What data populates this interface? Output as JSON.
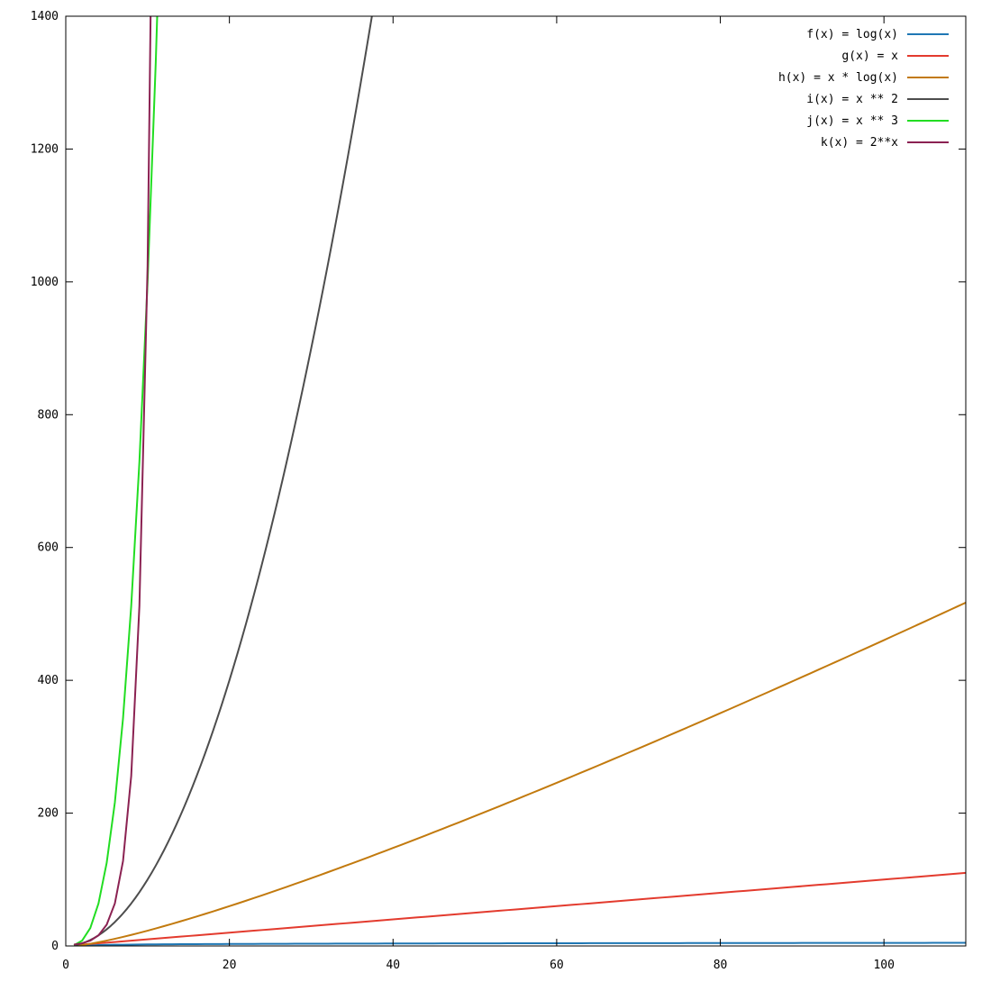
{
  "chart_data": {
    "type": "line",
    "title": "",
    "xlabel": "",
    "ylabel": "",
    "xlim": [
      0,
      110
    ],
    "ylim": [
      0,
      1400
    ],
    "x_ticks": [
      0,
      20,
      40,
      60,
      80,
      100
    ],
    "y_ticks": [
      0,
      200,
      400,
      600,
      800,
      1000,
      1200,
      1400
    ],
    "grid": false,
    "legend_position": "top-right",
    "series": [
      {
        "name": "f(x) = log(x)",
        "fn": "log",
        "color": "#1f77b4"
      },
      {
        "name": "g(x) = x",
        "fn": "linear",
        "color": "#e33b2e"
      },
      {
        "name": "h(x) = x * log(x)",
        "fn": "xlogx",
        "color": "#c27a0e"
      },
      {
        "name": "i(x) = x ** 2",
        "fn": "square",
        "color": "#4d4d4d"
      },
      {
        "name": "j(x) = x ** 3",
        "fn": "cube",
        "color": "#22dd22"
      },
      {
        "name": "k(x) = 2**x",
        "fn": "exp2",
        "color": "#8b2252"
      }
    ]
  }
}
